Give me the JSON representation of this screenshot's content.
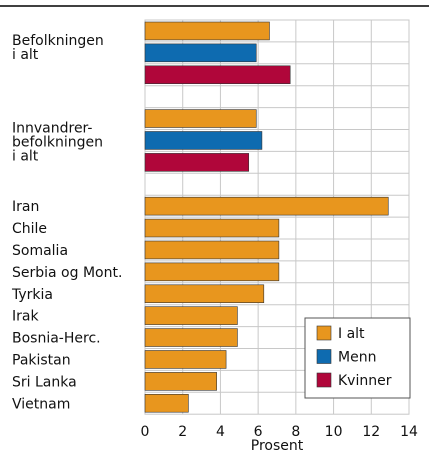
{
  "chart_data": {
    "type": "bar",
    "orientation": "horizontal",
    "categories": [
      "Befolkningen\ni alt",
      "Innvandrer-\nbefolkningen\ni alt",
      "Iran",
      "Chile",
      "Somalia",
      "Serbia og Mont.",
      "Tyrkia",
      "Irak",
      "Bosnia-Herc.",
      "Pakistan",
      "Sri Lanka",
      "Vietnam"
    ],
    "series": [
      {
        "name": "I alt",
        "color": "#e8961e",
        "values": [
          6.6,
          5.9,
          12.9,
          7.1,
          7.1,
          7.1,
          6.3,
          4.9,
          4.9,
          4.3,
          3.8,
          2.3
        ]
      },
      {
        "name": "Menn",
        "color": "#0e6bb0",
        "values": [
          5.9,
          6.2,
          null,
          null,
          null,
          null,
          null,
          null,
          null,
          null,
          null,
          null
        ]
      },
      {
        "name": "Kvinner",
        "color": "#b0063a",
        "values": [
          7.7,
          5.5,
          null,
          null,
          null,
          null,
          null,
          null,
          null,
          null,
          null,
          null
        ]
      }
    ],
    "xlabel": "Prosent",
    "xlim": [
      0,
      14
    ],
    "xticks": [
      0,
      2,
      4,
      6,
      8,
      10,
      12,
      14
    ],
    "grid": true,
    "legend": "lower right"
  }
}
